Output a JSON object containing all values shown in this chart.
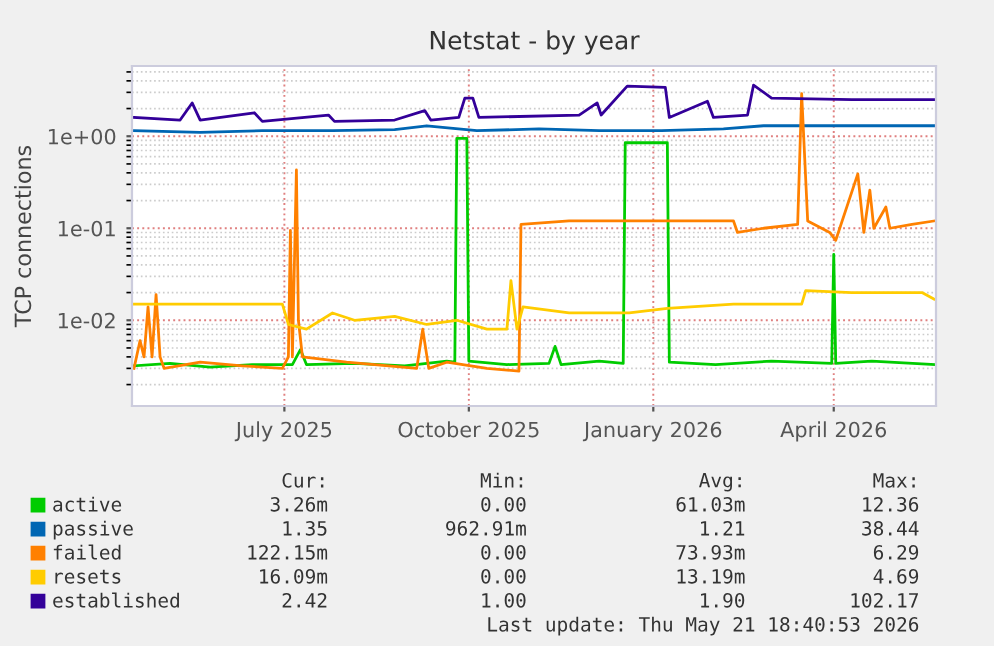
{
  "chart_data": {
    "type": "line",
    "title": "Netstat - by year",
    "ylabel": "TCP connections",
    "log": "y",
    "xlim": [
      "2025-04-16",
      "2026-05-22"
    ],
    "xticks": [
      {
        "value": "2025-07-01",
        "label": "July 2025"
      },
      {
        "value": "2025-10-01",
        "label": "October 2025"
      },
      {
        "value": "2026-01-01",
        "label": "January 2026"
      },
      {
        "value": "2026-04-01",
        "label": "April 2026"
      }
    ],
    "ylim": [
      0.00117,
      5.8
    ],
    "yticks": [
      {
        "value": 0.01,
        "label": "1e-02"
      },
      {
        "value": 0.1,
        "label": "1e-01"
      },
      {
        "value": 1,
        "label": "1e+00"
      }
    ],
    "grid": true,
    "legend": "bottom",
    "marker": "none",
    "line_style": "solid",
    "series": [
      {
        "name": "active",
        "color": "#00cc00",
        "x": [
          "2025-04-17",
          "2025-05-05",
          "2025-05-25",
          "2025-06-15",
          "2025-07-05",
          "2025-07-09",
          "2025-07-12",
          "2025-08-05",
          "2025-08-30",
          "2025-09-20",
          "2025-09-24",
          "2025-09-25",
          "2025-09-30",
          "2025-10-01",
          "2025-10-20",
          "2025-11-10",
          "2025-11-13",
          "2025-11-16",
          "2025-12-05",
          "2025-12-17",
          "2025-12-18",
          "2026-01-08",
          "2026-01-09",
          "2026-02-01",
          "2026-03-01",
          "2026-03-31",
          "2026-04-01",
          "2026-04-02",
          "2026-04-20",
          "2026-05-21"
        ],
        "values": [
          0.0032,
          0.0034,
          0.0031,
          0.0033,
          0.0033,
          0.0048,
          0.0033,
          0.0034,
          0.0032,
          0.0036,
          0.0035,
          0.95,
          0.95,
          0.0036,
          0.0033,
          0.0034,
          0.0052,
          0.0033,
          0.0036,
          0.0034,
          0.85,
          0.85,
          0.0035,
          0.0033,
          0.0036,
          0.0034,
          0.052,
          0.0034,
          0.0036,
          0.0033
        ]
      },
      {
        "name": "passive",
        "color": "#0066b3",
        "x": [
          "2025-04-17",
          "2025-05-20",
          "2025-06-20",
          "2025-07-25",
          "2025-08-25",
          "2025-09-10",
          "2025-10-05",
          "2025-11-05",
          "2025-12-05",
          "2026-01-05",
          "2026-02-05",
          "2026-02-25",
          "2026-03-20",
          "2026-04-20",
          "2026-05-21"
        ],
        "values": [
          1.15,
          1.1,
          1.15,
          1.15,
          1.18,
          1.3,
          1.15,
          1.2,
          1.15,
          1.15,
          1.2,
          1.3,
          1.3,
          1.3,
          1.3
        ]
      },
      {
        "name": "failed",
        "color": "#ff8000",
        "x": [
          "2025-04-17",
          "2025-04-20",
          "2025-04-22",
          "2025-04-24",
          "2025-04-26",
          "2025-04-28",
          "2025-04-30",
          "2025-05-02",
          "2025-05-20",
          "2025-06-10",
          "2025-06-30",
          "2025-07-03",
          "2025-07-04",
          "2025-07-05",
          "2025-07-07",
          "2025-07-08",
          "2025-07-10",
          "2025-08-01",
          "2025-09-05",
          "2025-09-08",
          "2025-09-11",
          "2025-09-20",
          "2025-10-10",
          "2025-10-26",
          "2025-10-27",
          "2025-11-20",
          "2025-12-20",
          "2026-01-20",
          "2026-02-10",
          "2026-02-12",
          "2026-02-25",
          "2026-03-14",
          "2026-03-16",
          "2026-03-19",
          "2026-03-30",
          "2026-04-02",
          "2026-04-13",
          "2026-04-16",
          "2026-04-19",
          "2026-04-21",
          "2026-04-27",
          "2026-04-29",
          "2026-05-10",
          "2026-05-21"
        ],
        "values": [
          0.003,
          0.006,
          0.004,
          0.014,
          0.004,
          0.019,
          0.004,
          0.003,
          0.0035,
          0.0032,
          0.003,
          0.004,
          0.095,
          0.004,
          0.43,
          0.01,
          0.004,
          0.0035,
          0.003,
          0.008,
          0.003,
          0.0035,
          0.003,
          0.0028,
          0.11,
          0.12,
          0.12,
          0.12,
          0.12,
          0.09,
          0.1,
          0.11,
          2.9,
          0.12,
          0.09,
          0.074,
          0.39,
          0.09,
          0.26,
          0.1,
          0.17,
          0.1,
          0.11,
          0.12
        ]
      },
      {
        "name": "resets",
        "color": "#ffcc00",
        "x": [
          "2025-04-17",
          "2025-05-20",
          "2025-06-30",
          "2025-07-03",
          "2025-07-12",
          "2025-07-25",
          "2025-08-05",
          "2025-08-25",
          "2025-09-10",
          "2025-09-25",
          "2025-10-10",
          "2025-10-20",
          "2025-10-22",
          "2025-10-25",
          "2025-10-28",
          "2025-11-20",
          "2025-12-20",
          "2026-01-08",
          "2026-02-10",
          "2026-03-16",
          "2026-03-18",
          "2026-04-10",
          "2026-05-15",
          "2026-05-21"
        ],
        "values": [
          0.015,
          0.015,
          0.015,
          0.009,
          0.008,
          0.012,
          0.01,
          0.011,
          0.009,
          0.01,
          0.008,
          0.008,
          0.027,
          0.008,
          0.014,
          0.012,
          0.012,
          0.0135,
          0.015,
          0.015,
          0.021,
          0.02,
          0.02,
          0.017
        ]
      },
      {
        "name": "established",
        "color": "#330099",
        "x": [
          "2025-04-17",
          "2025-05-10",
          "2025-05-16",
          "2025-05-20",
          "2025-06-16",
          "2025-06-20",
          "2025-07-23",
          "2025-07-26",
          "2025-08-25",
          "2025-09-09",
          "2025-09-12",
          "2025-09-26",
          "2025-09-29",
          "2025-10-03",
          "2025-10-06",
          "2025-11-25",
          "2025-12-04",
          "2025-12-06",
          "2025-12-19",
          "2026-01-07",
          "2026-01-09",
          "2026-01-28",
          "2026-01-31",
          "2026-02-17",
          "2026-02-20",
          "2026-03-01",
          "2026-04-10",
          "2026-05-21"
        ],
        "values": [
          1.6,
          1.5,
          2.3,
          1.5,
          1.8,
          1.45,
          1.7,
          1.45,
          1.5,
          1.9,
          1.5,
          1.6,
          2.6,
          2.6,
          1.6,
          1.7,
          2.3,
          1.7,
          3.5,
          3.4,
          1.6,
          2.4,
          1.6,
          1.7,
          3.6,
          2.6,
          2.5,
          2.5
        ]
      }
    ],
    "annotations": [
      "Cur:",
      "Min:",
      "Avg:",
      "Max:",
      "3.26m",
      "0.00",
      "61.03m",
      "12.36",
      "1.35",
      "962.91m",
      "1.21",
      "38.44",
      "122.15m",
      "0.00",
      "73.93m",
      "6.29",
      "16.09m",
      "0.00",
      "13.19m",
      "4.69",
      "2.42",
      "1.00",
      "1.90",
      "102.17",
      "Last update: Thu May 21 18:40:53 2026"
    ]
  }
}
